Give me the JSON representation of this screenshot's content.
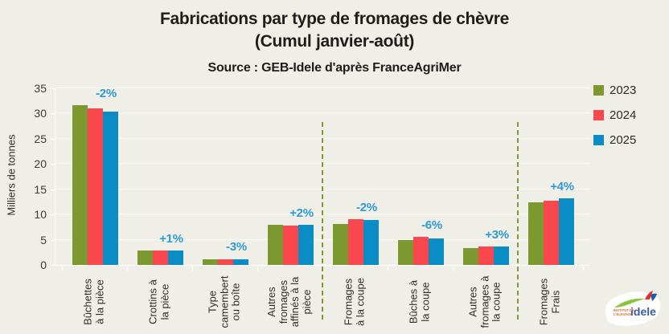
{
  "chart_data": {
    "type": "bar",
    "title_lines": [
      "Fabrications par type de fromages de chèvre",
      "(Cumul janvier-août)"
    ],
    "source": "Source : GEB-Idele d'après FranceAgriMer",
    "ylabel": "Milliers de tonnes",
    "ylim": [
      0,
      35
    ],
    "yticks": [
      0,
      5,
      10,
      15,
      20,
      25,
      30,
      35
    ],
    "grid": true,
    "legend_position": "right",
    "background": "#f0efe7",
    "categories": [
      "Bûchettes\nà la pièce",
      "Crottins à\nla pièce",
      "Type\ncamembert\nou boîte",
      "Autres\nfromages\naffinés à la\npièce",
      "Fromages\nà la coupe",
      "Bûches à\nla coupe",
      "Autres\nfromages à\nla coupe",
      "Fromages\nFrais"
    ],
    "series": [
      {
        "name": "2023",
        "color": "#7b992e",
        "values": [
          31.7,
          2.8,
          1.1,
          8.0,
          8.2,
          4.9,
          3.4,
          12.4
        ]
      },
      {
        "name": "2024",
        "color": "#f9474d",
        "values": [
          31.0,
          2.9,
          1.2,
          7.8,
          9.1,
          5.6,
          3.6,
          12.7
        ]
      },
      {
        "name": "2025",
        "color": "#0a8cc4",
        "values": [
          30.4,
          2.9,
          1.15,
          8.0,
          8.9,
          5.3,
          3.7,
          13.2
        ]
      }
    ],
    "annotations": [
      "-2%",
      "+1%",
      "-3%",
      "+2%",
      "-2%",
      "-6%",
      "+3%",
      "+4%"
    ],
    "annotation_color": "#2d9ad3",
    "separator_after_groups": [
      4,
      7
    ],
    "separator_color": "#7d9c31"
  },
  "logo": {
    "brand": "idele",
    "small_text_1": "INSTITUT DE",
    "small_text_2": "L'ÉLEVAGE"
  }
}
